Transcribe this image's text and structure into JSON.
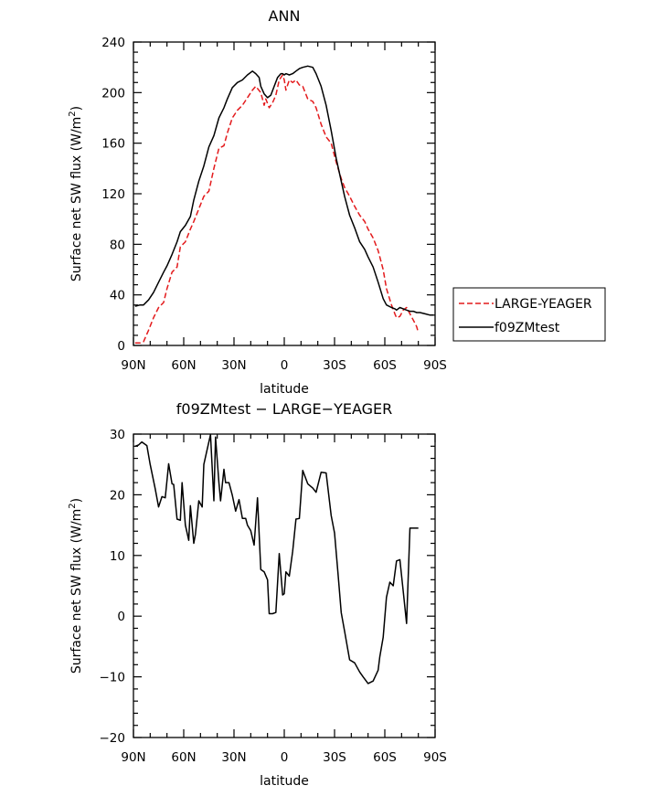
{
  "chart_data": [
    {
      "type": "line",
      "title": "ANN",
      "xlabel": "latitude",
      "ylabel": "Surface net SW flux (W/m",
      "ylabel_sup": "2",
      "ylabel_close": ")",
      "xlim": [
        90,
        -90
      ],
      "ylim": [
        0,
        240
      ],
      "x_ticks": [
        90,
        60,
        30,
        0,
        -30,
        -60,
        -90
      ],
      "x_tick_labels": [
        "90N",
        "60N",
        "30N",
        "0",
        "30S",
        "60S",
        "90S"
      ],
      "y_ticks": [
        0,
        40,
        80,
        120,
        160,
        200,
        240
      ],
      "y_tick_labels": [
        "0",
        "40",
        "80",
        "120",
        "160",
        "200",
        "240"
      ],
      "grid": false,
      "legend": "right",
      "series": [
        {
          "name": "LARGE-YEAGER",
          "color": "#e31a1c",
          "dash": "dashed",
          "x": [
            89,
            86,
            84,
            81,
            78,
            75,
            72,
            70,
            67,
            64,
            62,
            59,
            56,
            54,
            51,
            48,
            45,
            42,
            39,
            36,
            34,
            31,
            28,
            25,
            22,
            19,
            17,
            14,
            12,
            11,
            9,
            7,
            5,
            3,
            1,
            0,
            -1,
            -3,
            -5,
            -7,
            -9,
            -11,
            -14,
            -17,
            -19,
            -22,
            -25,
            -28,
            -31,
            -34,
            -36,
            -39,
            -42,
            -45,
            -48,
            -50,
            -53,
            -56,
            -59,
            -61,
            -64,
            -66,
            -67,
            -69,
            -71,
            -73,
            -75,
            -77,
            -79,
            -80
          ],
          "y": [
            2,
            2,
            3,
            12,
            22,
            30,
            34,
            45,
            58,
            62,
            78,
            82,
            92,
            98,
            108,
            118,
            122,
            140,
            156,
            158,
            168,
            180,
            186,
            190,
            196,
            202,
            205,
            200,
            190,
            195,
            188,
            192,
            198,
            210,
            214,
            210,
            202,
            210,
            208,
            210,
            206,
            205,
            195,
            193,
            188,
            175,
            165,
            160,
            145,
            132,
            125,
            118,
            110,
            103,
            98,
            92,
            85,
            75,
            60,
            45,
            32,
            25,
            22,
            23,
            28,
            30,
            25,
            20,
            15,
            10
          ]
        },
        {
          "name": "f09ZMtest",
          "color": "#000000",
          "dash": "solid",
          "x": [
            89,
            86,
            84,
            81,
            78,
            75,
            72,
            70,
            67,
            64,
            62,
            59,
            56,
            54,
            51,
            48,
            45,
            42,
            39,
            36,
            34,
            31,
            28,
            25,
            22,
            19,
            17,
            15,
            14,
            12,
            10,
            8,
            6,
            4,
            2,
            1,
            0,
            -1,
            -3,
            -5,
            -7,
            -9,
            -11,
            -14,
            -17,
            -19,
            -22,
            -25,
            -28,
            -31,
            -34,
            -36,
            -39,
            -42,
            -45,
            -48,
            -50,
            -53,
            -56,
            -59,
            -61,
            -64,
            -66,
            -67,
            -69,
            -71,
            -73,
            -75,
            -77,
            -79,
            -81,
            -84,
            -87,
            -89
          ],
          "y": [
            31,
            32,
            32,
            36,
            42,
            50,
            58,
            63,
            72,
            82,
            90,
            95,
            102,
            115,
            130,
            142,
            157,
            166,
            180,
            188,
            195,
            204,
            208,
            210,
            214,
            217,
            215,
            212,
            205,
            199,
            196,
            198,
            205,
            212,
            215,
            215,
            214,
            215,
            214,
            215,
            217,
            219,
            220,
            221,
            220,
            215,
            205,
            190,
            170,
            148,
            130,
            118,
            103,
            93,
            82,
            76,
            70,
            62,
            50,
            37,
            32,
            30,
            29,
            28,
            30,
            29,
            28,
            27,
            27,
            26,
            26,
            25,
            24,
            24
          ]
        }
      ]
    },
    {
      "type": "line",
      "title": "f09ZMtest − LARGE−YEAGER",
      "xlabel": "latitude",
      "ylabel": "Surface net SW flux (W/m",
      "ylabel_sup": "2",
      "ylabel_close": ")",
      "xlim": [
        90,
        -90
      ],
      "ylim": [
        -20,
        30
      ],
      "x_ticks": [
        90,
        60,
        30,
        0,
        -30,
        -60,
        -90
      ],
      "x_tick_labels": [
        "90N",
        "60N",
        "30N",
        "0",
        "30S",
        "60S",
        "90S"
      ],
      "y_ticks": [
        -20,
        -10,
        0,
        10,
        20,
        30
      ],
      "y_tick_labels": [
        "−20",
        "−10",
        "0",
        "10",
        "20",
        "30"
      ],
      "grid": false,
      "series": [
        {
          "name": "",
          "color": "#000000",
          "dash": "solid",
          "x": [
            89,
            87,
            85,
            82,
            80,
            77,
            75,
            73,
            71,
            69,
            67,
            66,
            64,
            62,
            61,
            59,
            57,
            56,
            54,
            53,
            51,
            49,
            48,
            46,
            44,
            42,
            41,
            39,
            38,
            36,
            35,
            33,
            31,
            29,
            27,
            25,
            23,
            22,
            20,
            18,
            16,
            14,
            12,
            10,
            9,
            7,
            5,
            3,
            1,
            0,
            -1,
            -3,
            -5,
            -7,
            -9,
            -11,
            -14,
            -17,
            -19,
            -22,
            -25,
            -28,
            -30,
            -32,
            -34,
            -36,
            -39,
            -42,
            -45,
            -47,
            -50,
            -53,
            -56,
            -57,
            -59,
            -61,
            -63,
            -65,
            -67,
            -69,
            -71,
            -73,
            -75,
            -77,
            -79,
            -80
          ],
          "y": [
            28,
            28.2,
            28.7,
            28.1,
            25,
            21,
            18,
            19.7,
            19.5,
            25.1,
            21.8,
            21.7,
            16,
            15.8,
            22,
            15,
            12.5,
            18.2,
            12,
            13.5,
            19,
            18,
            25,
            27.5,
            29.9,
            19,
            29.5,
            22,
            19,
            24.2,
            22,
            22,
            19.9,
            17.3,
            19.2,
            16.1,
            16.1,
            15,
            14.1,
            11.7,
            19.5,
            7.7,
            7.3,
            6,
            0.4,
            0.4,
            0.6,
            10.3,
            3.5,
            3.7,
            7.3,
            6.6,
            10.7,
            16,
            16.1,
            24,
            21.8,
            21.1,
            20.4,
            23.7,
            23.6,
            16.6,
            13.7,
            7.2,
            0.6,
            -2.5,
            -7.2,
            -7.7,
            -9.2,
            -10,
            -11.1,
            -10.7,
            -8.9,
            -6.7,
            -3.5,
            3.1,
            5.6,
            5,
            9.1,
            9.3,
            4,
            -1.2,
            14.5,
            14.5,
            14.5,
            14.5
          ]
        }
      ]
    }
  ],
  "legend_entries": [
    {
      "label": "LARGE-YEAGER",
      "color": "#e31a1c",
      "dash": "dashed"
    },
    {
      "label": "f09ZMtest",
      "color": "#000000",
      "dash": "solid"
    }
  ]
}
